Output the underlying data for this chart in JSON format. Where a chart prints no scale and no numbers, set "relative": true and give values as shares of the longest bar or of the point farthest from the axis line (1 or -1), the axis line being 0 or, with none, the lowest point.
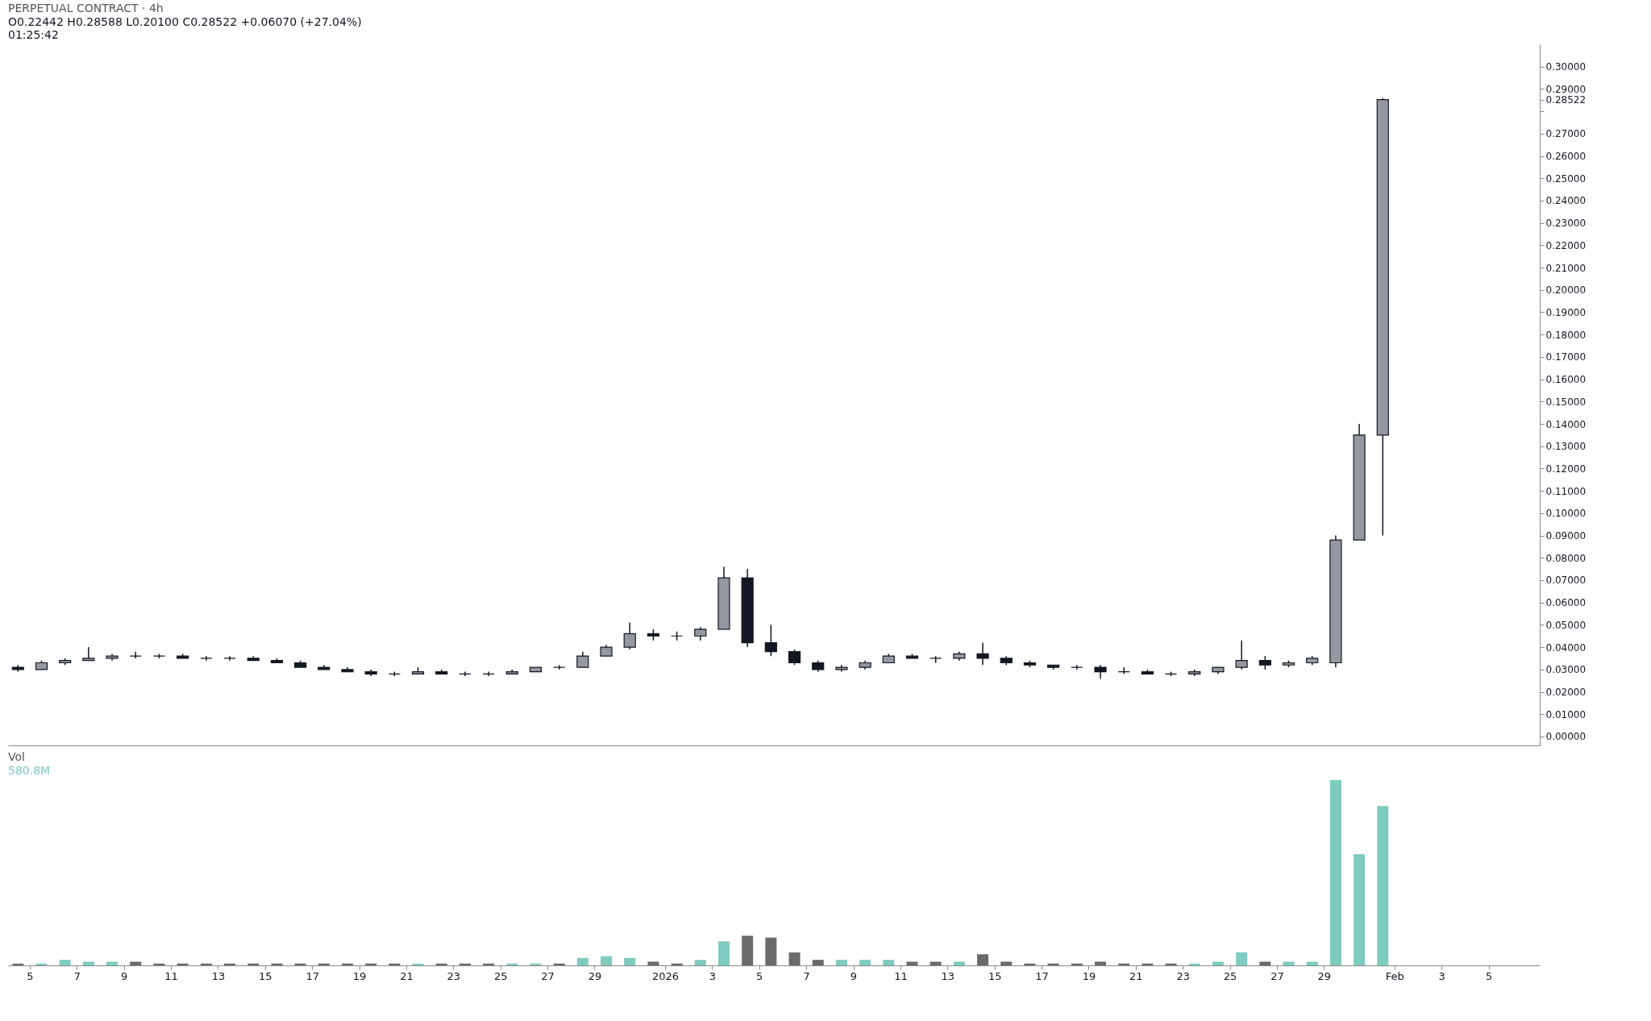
{
  "chart_data": [
    {
      "type": "candlestick",
      "title": "PERPETUAL CONTRACT · 4h",
      "annotations": [
        "O0.22442 H0.28588 L0.20100 C0.28522 +0.06070 (+27.04%)",
        "01:25:42"
      ],
      "tick_labels": "y",
      "x": [
        "2025-12-04T12:00",
        "2025-12-05T12:00",
        "2025-12-06T12:00",
        "2025-12-07T12:00",
        "2025-12-08T12:00",
        "2025-12-09T12:00",
        "2025-12-10T12:00",
        "2025-12-11T12:00",
        "2025-12-12T12:00",
        "2025-12-13T12:00",
        "2025-12-14T12:00",
        "2025-12-15T12:00",
        "2025-12-16T12:00",
        "2025-12-17T12:00",
        "2025-12-18T12:00",
        "2025-12-19T12:00",
        "2025-12-20T12:00",
        "2025-12-21T12:00",
        "2025-12-22T12:00",
        "2025-12-23T12:00",
        "2025-12-24T12:00",
        "2025-12-25T12:00",
        "2025-12-26T12:00",
        "2025-12-27T12:00",
        "2025-12-28T12:00",
        "2025-12-29T12:00",
        "2025-12-30T12:00",
        "2025-12-31T12:00",
        "2026-01-01T12:00",
        "2026-01-02T12:00",
        "2026-01-03T12:00",
        "2026-01-04T12:00",
        "2026-01-05T12:00",
        "2026-01-06T12:00",
        "2026-01-07T12:00",
        "2026-01-08T12:00",
        "2026-01-09T12:00",
        "2026-01-10T12:00",
        "2026-01-11T12:00",
        "2026-01-12T12:00",
        "2026-01-13T12:00",
        "2026-01-14T12:00",
        "2026-01-15T12:00",
        "2026-01-16T12:00",
        "2026-01-17T12:00",
        "2026-01-18T12:00",
        "2026-01-19T12:00",
        "2026-01-20T12:00",
        "2026-01-21T12:00",
        "2026-01-22T12:00",
        "2026-01-23T12:00",
        "2026-01-24T12:00",
        "2026-01-25T12:00",
        "2026-01-26T12:00",
        "2026-01-27T12:00",
        "2026-01-28T12:00",
        "2026-01-29T12:00",
        "2026-01-30T12:00",
        "2026-01-31T12:00"
      ],
      "ohlc": [
        [
          0.031,
          0.032,
          0.029,
          0.03
        ],
        [
          0.03,
          0.034,
          0.03,
          0.033
        ],
        [
          0.033,
          0.035,
          0.032,
          0.034
        ],
        [
          0.034,
          0.04,
          0.034,
          0.035
        ],
        [
          0.035,
          0.037,
          0.034,
          0.036
        ],
        [
          0.036,
          0.038,
          0.035,
          0.036
        ],
        [
          0.036,
          0.037,
          0.035,
          0.036
        ],
        [
          0.036,
          0.037,
          0.035,
          0.035
        ],
        [
          0.035,
          0.036,
          0.034,
          0.035
        ],
        [
          0.035,
          0.036,
          0.034,
          0.035
        ],
        [
          0.035,
          0.036,
          0.034,
          0.034
        ],
        [
          0.034,
          0.035,
          0.033,
          0.033
        ],
        [
          0.033,
          0.034,
          0.031,
          0.031
        ],
        [
          0.031,
          0.032,
          0.03,
          0.03
        ],
        [
          0.03,
          0.031,
          0.029,
          0.029
        ],
        [
          0.029,
          0.03,
          0.027,
          0.028
        ],
        [
          0.028,
          0.029,
          0.027,
          0.028
        ],
        [
          0.028,
          0.031,
          0.028,
          0.029
        ],
        [
          0.029,
          0.03,
          0.028,
          0.028
        ],
        [
          0.028,
          0.029,
          0.027,
          0.028
        ],
        [
          0.028,
          0.029,
          0.027,
          0.028
        ],
        [
          0.028,
          0.03,
          0.028,
          0.029
        ],
        [
          0.029,
          0.031,
          0.029,
          0.031
        ],
        [
          0.031,
          0.032,
          0.03,
          0.031
        ],
        [
          0.031,
          0.038,
          0.031,
          0.036
        ],
        [
          0.036,
          0.041,
          0.036,
          0.04
        ],
        [
          0.04,
          0.051,
          0.039,
          0.046
        ],
        [
          0.046,
          0.048,
          0.043,
          0.045
        ],
        [
          0.045,
          0.047,
          0.043,
          0.045
        ],
        [
          0.045,
          0.049,
          0.043,
          0.048
        ],
        [
          0.048,
          0.076,
          0.048,
          0.071
        ],
        [
          0.071,
          0.075,
          0.04,
          0.042
        ],
        [
          0.042,
          0.05,
          0.036,
          0.038
        ],
        [
          0.038,
          0.039,
          0.032,
          0.033
        ],
        [
          0.033,
          0.034,
          0.029,
          0.03
        ],
        [
          0.03,
          0.032,
          0.029,
          0.031
        ],
        [
          0.031,
          0.034,
          0.03,
          0.033
        ],
        [
          0.033,
          0.037,
          0.033,
          0.036
        ],
        [
          0.036,
          0.037,
          0.035,
          0.035
        ],
        [
          0.035,
          0.036,
          0.033,
          0.035
        ],
        [
          0.035,
          0.038,
          0.034,
          0.037
        ],
        [
          0.037,
          0.042,
          0.032,
          0.035
        ],
        [
          0.035,
          0.036,
          0.032,
          0.033
        ],
        [
          0.033,
          0.034,
          0.031,
          0.032
        ],
        [
          0.032,
          0.032,
          0.03,
          0.031
        ],
        [
          0.031,
          0.032,
          0.03,
          0.031
        ],
        [
          0.031,
          0.032,
          0.026,
          0.029
        ],
        [
          0.029,
          0.031,
          0.028,
          0.029
        ],
        [
          0.029,
          0.03,
          0.028,
          0.028
        ],
        [
          0.028,
          0.029,
          0.027,
          0.028
        ],
        [
          0.028,
          0.03,
          0.027,
          0.029
        ],
        [
          0.029,
          0.031,
          0.028,
          0.031
        ],
        [
          0.031,
          0.043,
          0.03,
          0.034
        ],
        [
          0.034,
          0.036,
          0.03,
          0.032
        ],
        [
          0.032,
          0.034,
          0.031,
          0.033
        ],
        [
          0.033,
          0.036,
          0.032,
          0.035
        ],
        [
          0.033,
          0.09,
          0.031,
          0.088
        ],
        [
          0.088,
          0.14,
          0.088,
          0.135
        ],
        [
          0.135,
          0.28588,
          0.09,
          0.28522
        ]
      ],
      "xlim": [
        "2025-12-04T06:00",
        "2026-02-07T00:00"
      ],
      "ylim": [
        -0.004,
        0.31
      ],
      "yticks": [
        {
          "value": 0,
          "label": "0.00000"
        },
        {
          "value": 0.01,
          "label": "0.01000"
        },
        {
          "value": 0.02,
          "label": "0.02000"
        },
        {
          "value": 0.03,
          "label": "0.03000"
        },
        {
          "value": 0.04,
          "label": "0.04000"
        },
        {
          "value": 0.05,
          "label": "0.05000"
        },
        {
          "value": 0.06,
          "label": "0.06000"
        },
        {
          "value": 0.07,
          "label": "0.07000"
        },
        {
          "value": 0.08,
          "label": "0.08000"
        },
        {
          "value": 0.09,
          "label": "0.09000"
        },
        {
          "value": 0.1,
          "label": "0.10000"
        },
        {
          "value": 0.11,
          "label": "0.11000"
        },
        {
          "value": 0.12,
          "label": "0.12000"
        },
        {
          "value": 0.13,
          "label": "0.13000"
        },
        {
          "value": 0.14,
          "label": "0.14000"
        },
        {
          "value": 0.15,
          "label": "0.15000"
        },
        {
          "value": 0.16,
          "label": "0.16000"
        },
        {
          "value": 0.17,
          "label": "0.17000"
        },
        {
          "value": 0.18,
          "label": "0.18000"
        },
        {
          "value": 0.19,
          "label": "0.19000"
        },
        {
          "value": 0.2,
          "label": "0.20000"
        },
        {
          "value": 0.21,
          "label": "0.21000"
        },
        {
          "value": 0.22,
          "label": "0.22000"
        },
        {
          "value": 0.23,
          "label": "0.23000"
        },
        {
          "value": 0.24,
          "label": "0.24000"
        },
        {
          "value": 0.25,
          "label": "0.25000"
        },
        {
          "value": 0.26,
          "label": "0.26000"
        },
        {
          "value": 0.27,
          "label": "0.27000"
        },
        {
          "value": 0.28,
          "label": null
        },
        {
          "value": 0.28522,
          "label": "0.28522"
        },
        {
          "value": 0.29,
          "label": "0.29000"
        },
        {
          "value": 0.3,
          "label": "0.30000"
        }
      ]
    },
    {
      "type": "bar",
      "title": "Vol",
      "annotations": [
        "580.8M"
      ],
      "relative": true,
      "tick_labels": "x",
      "x": [
        "2025-12-04T12:00",
        "2025-12-05T12:00",
        "2025-12-06T12:00",
        "2025-12-07T12:00",
        "2025-12-08T12:00",
        "2025-12-09T12:00",
        "2025-12-10T12:00",
        "2025-12-11T12:00",
        "2025-12-12T12:00",
        "2025-12-13T12:00",
        "2025-12-14T12:00",
        "2025-12-15T12:00",
        "2025-12-16T12:00",
        "2025-12-17T12:00",
        "2025-12-18T12:00",
        "2025-12-19T12:00",
        "2025-12-20T12:00",
        "2025-12-21T12:00",
        "2025-12-22T12:00",
        "2025-12-23T12:00",
        "2025-12-24T12:00",
        "2025-12-25T12:00",
        "2025-12-26T12:00",
        "2025-12-27T12:00",
        "2025-12-28T12:00",
        "2025-12-29T12:00",
        "2025-12-30T12:00",
        "2025-12-31T12:00",
        "2026-01-01T12:00",
        "2026-01-02T12:00",
        "2026-01-03T12:00",
        "2026-01-04T12:00",
        "2026-01-05T12:00",
        "2026-01-06T12:00",
        "2026-01-07T12:00",
        "2026-01-08T12:00",
        "2026-01-09T12:00",
        "2026-01-10T12:00",
        "2026-01-11T12:00",
        "2026-01-12T12:00",
        "2026-01-13T12:00",
        "2026-01-14T12:00",
        "2026-01-15T12:00",
        "2026-01-16T12:00",
        "2026-01-17T12:00",
        "2026-01-18T12:00",
        "2026-01-19T12:00",
        "2026-01-20T12:00",
        "2026-01-21T12:00",
        "2026-01-22T12:00",
        "2026-01-23T12:00",
        "2026-01-24T12:00",
        "2026-01-25T12:00",
        "2026-01-26T12:00",
        "2026-01-27T12:00",
        "2026-01-28T12:00",
        "2026-01-29T12:00",
        "2026-01-30T12:00",
        "2026-01-31T12:00"
      ],
      "values": [
        0.01,
        0.01,
        0.03,
        0.02,
        0.02,
        0.02,
        0.01,
        0.01,
        0.01,
        0.01,
        0.01,
        0.01,
        0.01,
        0.01,
        0.01,
        0.01,
        0.01,
        0.01,
        0.01,
        0.01,
        0.01,
        0.01,
        0.01,
        0.01,
        0.04,
        0.05,
        0.04,
        0.02,
        0.01,
        0.03,
        0.13,
        0.16,
        0.15,
        0.07,
        0.03,
        0.03,
        0.03,
        0.03,
        0.02,
        0.02,
        0.02,
        0.06,
        0.02,
        0.01,
        0.01,
        0.01,
        0.02,
        0.01,
        0.01,
        0.01,
        0.01,
        0.02,
        0.07,
        0.02,
        0.02,
        0.02,
        1,
        0.6,
        0.86
      ],
      "colors": [
        "#6b6b6b",
        "#7ecbbf",
        "#7ecbbf",
        "#7ecbbf",
        "#7ecbbf",
        "#6b6b6b",
        "#6b6b6b",
        "#6b6b6b",
        "#6b6b6b",
        "#6b6b6b",
        "#6b6b6b",
        "#6b6b6b",
        "#6b6b6b",
        "#6b6b6b",
        "#6b6b6b",
        "#6b6b6b",
        "#6b6b6b",
        "#7ecbbf",
        "#6b6b6b",
        "#6b6b6b",
        "#6b6b6b",
        "#7ecbbf",
        "#7ecbbf",
        "#6b6b6b",
        "#7ecbbf",
        "#7ecbbf",
        "#7ecbbf",
        "#6b6b6b",
        "#6b6b6b",
        "#7ecbbf",
        "#7ecbbf",
        "#6b6b6b",
        "#6b6b6b",
        "#6b6b6b",
        "#6b6b6b",
        "#7ecbbf",
        "#7ecbbf",
        "#7ecbbf",
        "#6b6b6b",
        "#6b6b6b",
        "#7ecbbf",
        "#6b6b6b",
        "#6b6b6b",
        "#6b6b6b",
        "#6b6b6b",
        "#6b6b6b",
        "#6b6b6b",
        "#6b6b6b",
        "#6b6b6b",
        "#6b6b6b",
        "#7ecbbf",
        "#7ecbbf",
        "#7ecbbf",
        "#6b6b6b",
        "#7ecbbf",
        "#7ecbbf",
        "#7ecbbf",
        "#7ecbbf",
        "#7ecbbf"
      ],
      "xlim": [
        "2025-12-04T06:00",
        "2026-02-07T00:00"
      ],
      "xticks": [
        {
          "value": "2025-12-05",
          "label": "5"
        },
        {
          "value": "2025-12-07",
          "label": "7"
        },
        {
          "value": "2025-12-09",
          "label": "9"
        },
        {
          "value": "2025-12-11",
          "label": "11"
        },
        {
          "value": "2025-12-13",
          "label": "13"
        },
        {
          "value": "2025-12-15",
          "label": "15"
        },
        {
          "value": "2025-12-17",
          "label": "17"
        },
        {
          "value": "2025-12-19",
          "label": "19"
        },
        {
          "value": "2025-12-21",
          "label": "21"
        },
        {
          "value": "2025-12-23",
          "label": "23"
        },
        {
          "value": "2025-12-25",
          "label": "25"
        },
        {
          "value": "2025-12-27",
          "label": "27"
        },
        {
          "value": "2025-12-29",
          "label": "29"
        },
        {
          "value": "2026-01-01",
          "label": "2026"
        },
        {
          "value": "2026-01-03",
          "label": "3"
        },
        {
          "value": "2026-01-05",
          "label": "5"
        },
        {
          "value": "2026-01-07",
          "label": "7"
        },
        {
          "value": "2026-01-09",
          "label": "9"
        },
        {
          "value": "2026-01-11",
          "label": "11"
        },
        {
          "value": "2026-01-13",
          "label": "13"
        },
        {
          "value": "2026-01-15",
          "label": "15"
        },
        {
          "value": "2026-01-17",
          "label": "17"
        },
        {
          "value": "2026-01-19",
          "label": "19"
        },
        {
          "value": "2026-01-21",
          "label": "21"
        },
        {
          "value": "2026-01-23",
          "label": "23"
        },
        {
          "value": "2026-01-25",
          "label": "25"
        },
        {
          "value": "2026-01-27",
          "label": "27"
        },
        {
          "value": "2026-01-29",
          "label": "29"
        },
        {
          "value": "2026-02-01",
          "label": "Feb"
        },
        {
          "value": "2026-02-03",
          "label": "3"
        },
        {
          "value": "2026-02-05",
          "label": "5"
        }
      ]
    }
  ]
}
